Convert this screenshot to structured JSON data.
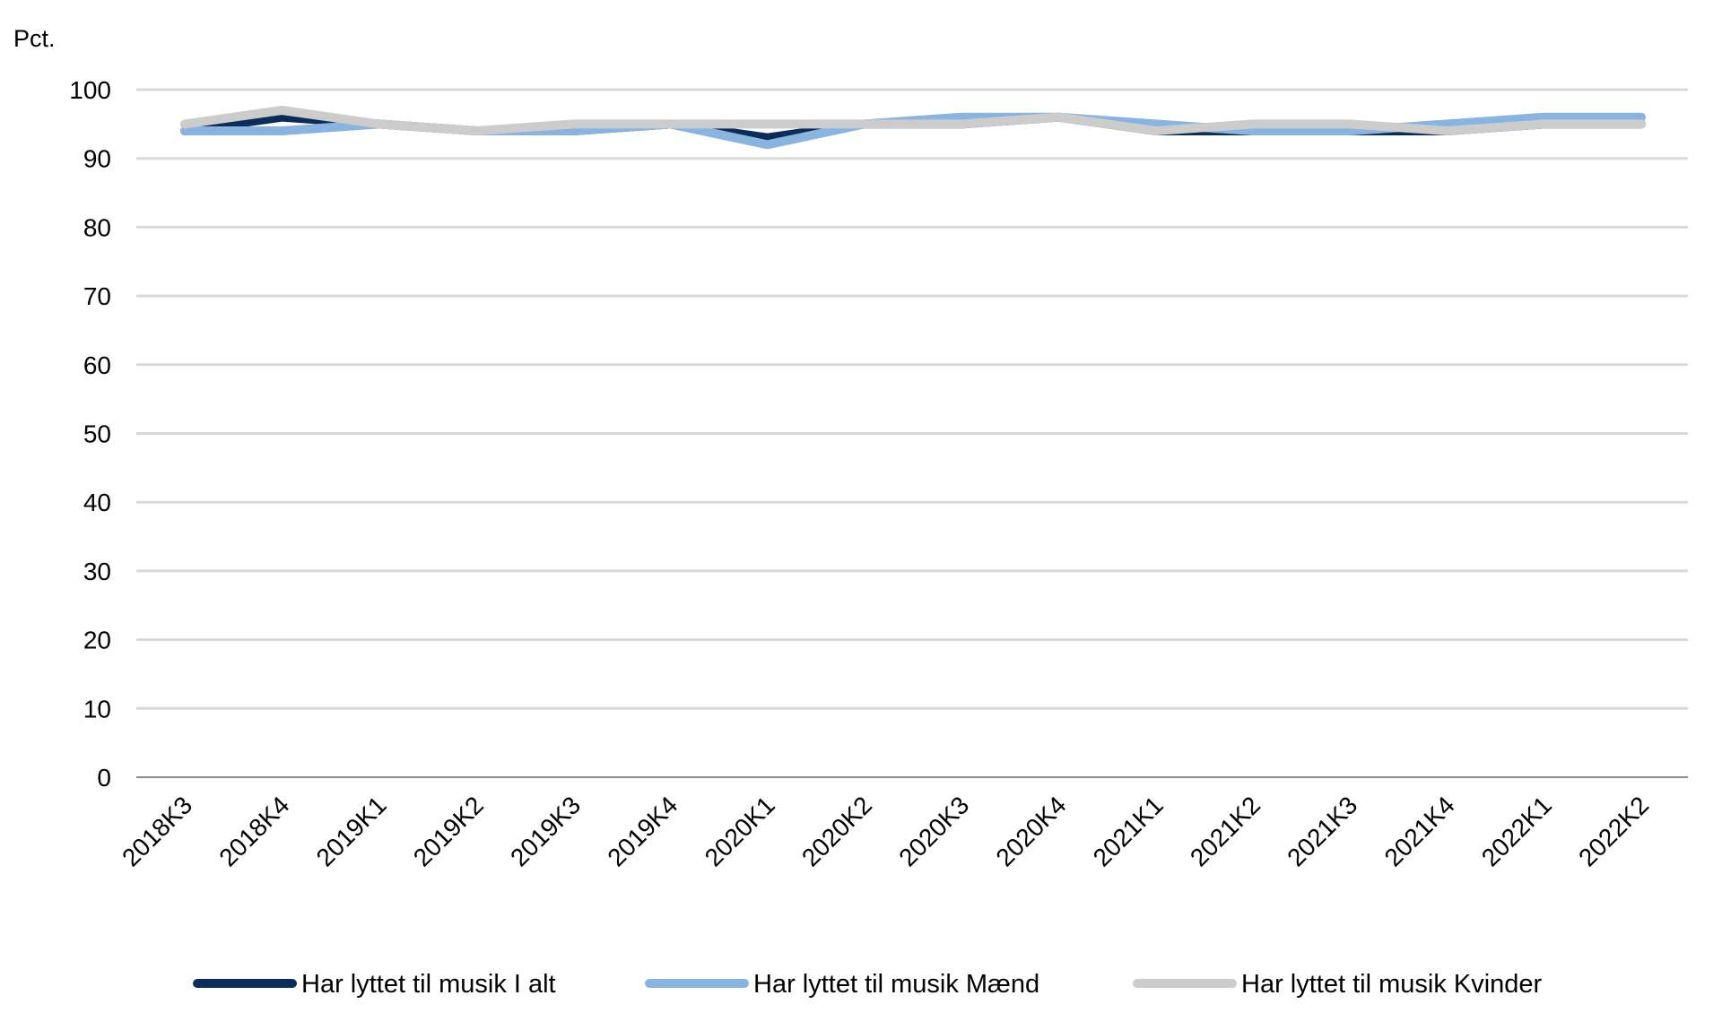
{
  "chart_data": {
    "type": "line",
    "unit_label": "Pct.",
    "title": "",
    "xlabel": "",
    "ylabel": "Pct.",
    "ylim": [
      0,
      100
    ],
    "yticks": [
      0,
      10,
      20,
      30,
      40,
      50,
      60,
      70,
      80,
      90,
      100
    ],
    "grid": true,
    "legend_position": "bottom",
    "categories": [
      "2018K3",
      "2018K4",
      "2019K1",
      "2019K2",
      "2019K3",
      "2019K4",
      "2020K1",
      "2020K2",
      "2020K3",
      "2020K4",
      "2021K1",
      "2021K2",
      "2021K3",
      "2021K4",
      "2022K1",
      "2022K2"
    ],
    "series": [
      {
        "name": "Har lyttet til musik I alt",
        "color": "#0b2d58",
        "values": [
          94,
          96,
          95,
          94,
          94,
          95,
          93,
          95,
          95,
          96,
          94,
          94,
          94,
          94,
          95,
          95
        ]
      },
      {
        "name": "Har lyttet til musik Mænd",
        "color": "#8ab4df",
        "values": [
          94,
          94,
          95,
          94,
          94,
          95,
          92,
          95,
          96,
          96,
          95,
          94,
          94,
          95,
          96,
          96
        ]
      },
      {
        "name": "Har lyttet til musik Kvinder",
        "color": "#cccccc",
        "values": [
          95,
          97,
          95,
          94,
          95,
          95,
          95,
          95,
          95,
          96,
          94,
          95,
          95,
          94,
          95,
          95
        ]
      }
    ]
  }
}
